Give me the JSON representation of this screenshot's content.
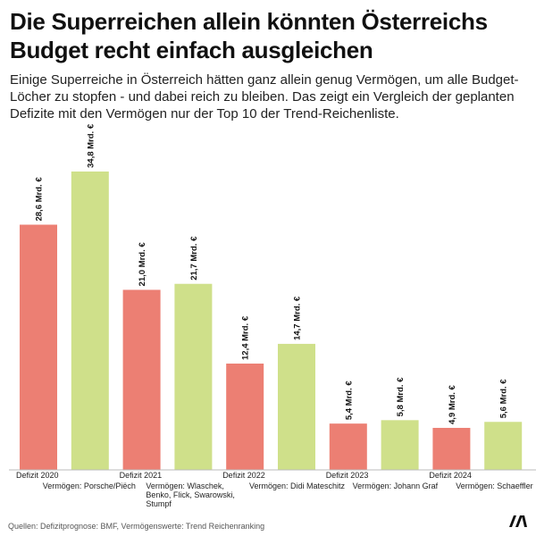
{
  "title": "Die Superreichen allein könnten Österreichs Budget recht einfach ausgleichen",
  "subtitle": "Einige Superreiche in Österreich hätten ganz allein genug Vermögen, um alle Budget-Löcher zu stopfen - und dabei reich zu bleiben. Das zeigt ein Vergleich der geplanten Defizite mit den Vermögen nur der Top 10 der Trend-Reichenliste.",
  "source": "Quellen: Defizitprognose: BMF, Vermögenswerte: Trend Reichenranking",
  "colors": {
    "deficit": "#ec7f73",
    "wealth": "#cfe08a"
  },
  "icons": {
    "logo": "moment-logo-icon"
  },
  "chart_data": {
    "type": "bar",
    "title": "Die Superreichen allein könnten Österreichs Budget recht einfach ausgleichen",
    "xlabel": "",
    "ylabel": "Mrd. €",
    "ylim": [
      0,
      35
    ],
    "grid": false,
    "bars": [
      {
        "kind": "deficit",
        "value": 28.6,
        "label": "28,6 Mrd. €",
        "category": [
          "Defizit 2020"
        ]
      },
      {
        "kind": "wealth",
        "value": 34.8,
        "label": "34,8 Mrd. €",
        "category": [
          "Vermögen: Porsche/Piëch"
        ]
      },
      {
        "kind": "deficit",
        "value": 21.0,
        "label": "21,0 Mrd. €",
        "category": [
          "Defizit 2021"
        ]
      },
      {
        "kind": "wealth",
        "value": 21.7,
        "label": "21,7 Mrd. €",
        "category": [
          "Vermögen: Wlaschek,",
          "Benko, Flick, Swarowski,",
          "Stumpf"
        ]
      },
      {
        "kind": "deficit",
        "value": 12.4,
        "label": "12,4 Mrd. €",
        "category": [
          "Defizit 2022"
        ]
      },
      {
        "kind": "wealth",
        "value": 14.7,
        "label": "14,7 Mrd. €",
        "category": [
          "Vermögen: Didi Mateschitz"
        ]
      },
      {
        "kind": "deficit",
        "value": 5.4,
        "label": "5,4 Mrd. €",
        "category": [
          "Defizit 2023"
        ]
      },
      {
        "kind": "wealth",
        "value": 5.8,
        "label": "5,8 Mrd. €",
        "category": [
          "Vermögen: Johann Graf"
        ]
      },
      {
        "kind": "deficit",
        "value": 4.9,
        "label": "4,9 Mrd. €",
        "category": [
          "Defizit 2024"
        ]
      },
      {
        "kind": "wealth",
        "value": 5.6,
        "label": "5,6 Mrd. €",
        "category": [
          "Vermögen: Schaeffler"
        ]
      }
    ]
  }
}
